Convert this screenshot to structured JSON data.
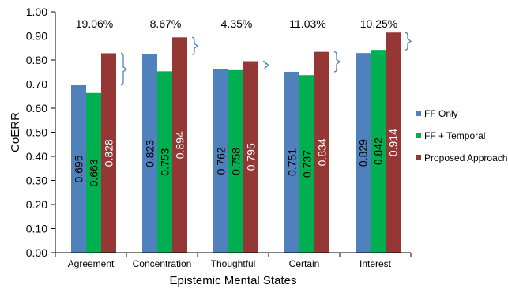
{
  "chart_data": {
    "type": "bar",
    "categories": [
      "Agreement",
      "Concentration",
      "Thoughtful",
      "Certain",
      "Interest"
    ],
    "series": [
      {
        "name": "FF Only",
        "color": "#4f81bd",
        "label_color": "#000000",
        "values": [
          0.695,
          0.823,
          0.762,
          0.751,
          0.829
        ]
      },
      {
        "name": "FF + Temporal",
        "color": "#00b050",
        "label_color": "#000000",
        "values": [
          0.663,
          0.753,
          0.758,
          0.737,
          0.842
        ]
      },
      {
        "name": "Proposed Approach",
        "color": "#953735",
        "label_color": "#ffffff",
        "values": [
          0.828,
          0.894,
          0.795,
          0.834,
          0.914
        ]
      }
    ],
    "value_labels": [
      [
        "0.695",
        "0.823",
        "0.762",
        "0.751",
        "0.829"
      ],
      [
        "0.663",
        "0.753",
        "0.758",
        "0.737",
        "0.842"
      ],
      [
        "0.828",
        "0.894",
        "0.795",
        "0.834",
        "0.914"
      ]
    ],
    "annotations": [
      "19.06%",
      "8.67%",
      "4.35%",
      "11.03%",
      "10.25%"
    ],
    "bracket_color": "#4f81bd",
    "title": "",
    "xlabel": "Epistemic Mental States",
    "ylabel": "CoERR",
    "ylim": [
      0,
      1.0
    ],
    "yticks": [
      "0.00",
      "0.10",
      "0.20",
      "0.30",
      "0.40",
      "0.50",
      "0.60",
      "0.70",
      "0.80",
      "0.90",
      "1.00"
    ],
    "grid": false,
    "legend_position": "right"
  }
}
